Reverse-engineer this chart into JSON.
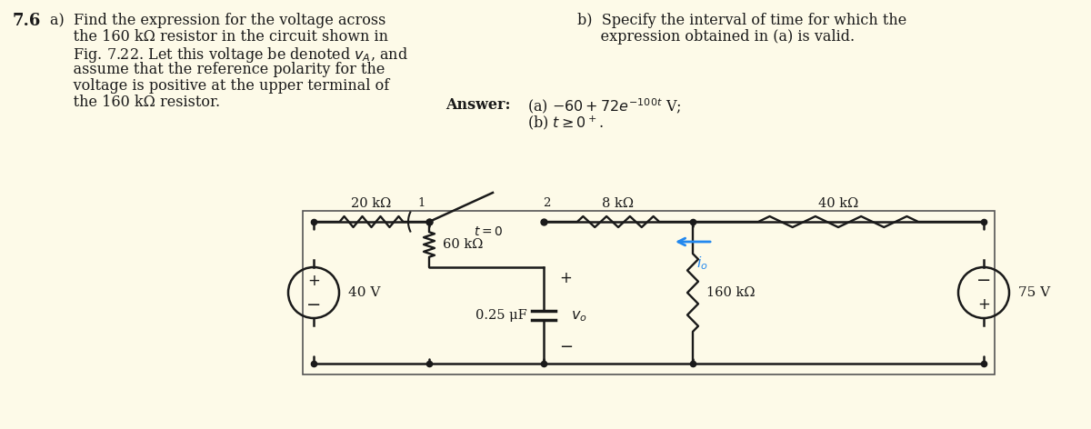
{
  "bg_color": "#FDFAE8",
  "line_color": "#1a1a1a",
  "io_color": "#2288ee",
  "text_color": "#1a1a1a",
  "R1": "20 kΩ",
  "R2": "8 kΩ",
  "R3": "40 kΩ",
  "R4": "60 kΩ",
  "R5": "160 kΩ",
  "C1": "0.25 μF",
  "V1": "40 V",
  "V2": "75 V"
}
